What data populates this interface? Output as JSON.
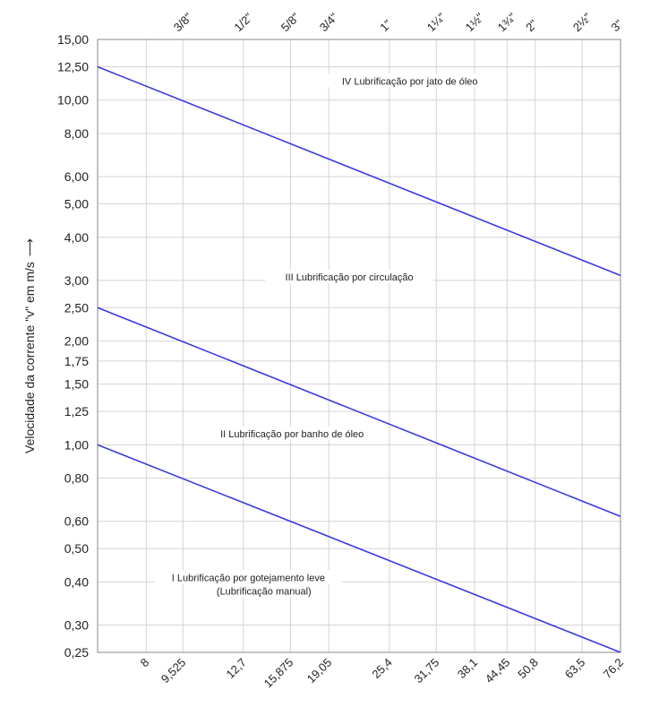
{
  "chart_data": {
    "type": "line",
    "title": "",
    "ylabel": "Velocidade da corrente \"v\" em m/s",
    "ylabel_arrow": "⟶",
    "xlabel": "",
    "y_scale": "log",
    "x_scale": "log",
    "ylim": [
      0.25,
      15
    ],
    "xlim": [
      6.35,
      76.2
    ],
    "grid": true,
    "y_ticks": [
      "15,00",
      "12,50",
      "10,00",
      "8,00",
      "6,00",
      "5,00",
      "4,00",
      "3,00",
      "2,50",
      "2,00",
      "1,75",
      "1,50",
      "1,25",
      "1,00",
      "0,80",
      "0,60",
      "0,50",
      "0,40",
      "0,30",
      "0,25"
    ],
    "y_tick_values": [
      15,
      12.5,
      10,
      8,
      6,
      5,
      4,
      3,
      2.5,
      2,
      1.75,
      1.5,
      1.25,
      1,
      0.8,
      0.6,
      0.5,
      0.4,
      0.3,
      0.25
    ],
    "x_ticks_bottom": [
      "8",
      "9,525",
      "12,7",
      "15,875",
      "19,05",
      "25,4",
      "31,75",
      "38,1",
      "44,45",
      "50,8",
      "63,5",
      "76,2"
    ],
    "x_tick_values": [
      8,
      9.525,
      12.7,
      15.875,
      19.05,
      25.4,
      31.75,
      38.1,
      44.45,
      50.8,
      63.5,
      76.2
    ],
    "x_ticks_top": [
      {
        "label": "3/8\"",
        "x": 9.525
      },
      {
        "label": "1/2\"",
        "x": 12.7
      },
      {
        "label": "5/8\"",
        "x": 15.875
      },
      {
        "label": "3/4\"",
        "x": 19.05
      },
      {
        "label": "1\"",
        "x": 25.4
      },
      {
        "label": "1¼\"",
        "x": 31.75
      },
      {
        "label": "1½\"",
        "x": 38.1
      },
      {
        "label": "1¾\"",
        "x": 44.45
      },
      {
        "label": "2\"",
        "x": 50.8
      },
      {
        "label": "2½\"",
        "x": 63.5
      },
      {
        "label": "3\"",
        "x": 76.2
      }
    ],
    "series": [
      {
        "x": [
          6.35,
          76.2
        ],
        "y": [
          1.0,
          0.25
        ],
        "color": "#3a3adf"
      },
      {
        "x": [
          6.35,
          76.2
        ],
        "y": [
          2.5,
          0.62
        ],
        "color": "#3a3adf"
      },
      {
        "x": [
          6.35,
          76.2
        ],
        "y": [
          12.5,
          3.1
        ],
        "color": "#3a3adf"
      }
    ],
    "regions": [
      {
        "label": "IV Lubrificação por jato de óleo",
        "x": 28,
        "y": 11.3
      },
      {
        "label": "III Lubrificação por circulação",
        "x": 21,
        "y": 3.05
      },
      {
        "label": "II Lubrificação por banho de óleo",
        "x": 16,
        "y": 1.07
      },
      {
        "label": "I Lubrificação por gotejamento leve",
        "x": 13,
        "y": 0.41
      },
      {
        "label": "(Lubrificação manual)",
        "x": 14,
        "y": 0.375
      }
    ]
  }
}
